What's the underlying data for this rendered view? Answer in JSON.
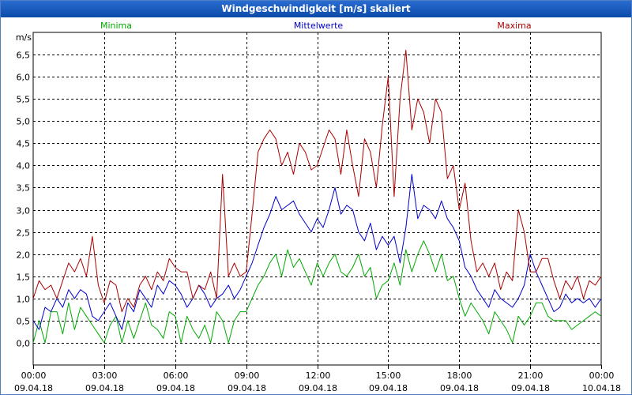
{
  "window": {
    "title": "Windgeschwindigkeit [m/s] skaliert"
  },
  "chart_data": {
    "type": "line",
    "title": "Windgeschwindigkeit [m/s] skaliert",
    "ylabel": "m/s",
    "xlabel": "",
    "ylim": [
      -0.5,
      7.0
    ],
    "xlim": [
      0,
      24
    ],
    "yticks": [
      "0,0",
      "0,5",
      "1,0",
      "1,5",
      "2,0",
      "2,5",
      "3,0",
      "3,5",
      "4,0",
      "4,5",
      "5,0",
      "5,5",
      "6,0",
      "6,5"
    ],
    "xticks": [
      {
        "time": "00:00",
        "date": "09.04.18"
      },
      {
        "time": "03:00",
        "date": "09.04.18"
      },
      {
        "time": "06:00",
        "date": "09.04.18"
      },
      {
        "time": "09:00",
        "date": "09.04.18"
      },
      {
        "time": "12:00",
        "date": "09.04.18"
      },
      {
        "time": "15:00",
        "date": "09.04.18"
      },
      {
        "time": "18:00",
        "date": "09.04.18"
      },
      {
        "time": "21:00",
        "date": "09.04.18"
      },
      {
        "time": "00:00",
        "date": "10.04.18"
      }
    ],
    "grid": true,
    "legend_position": "top",
    "series": [
      {
        "name": "Minima",
        "color": "#00aa00",
        "x": [
          0.0,
          0.25,
          0.5,
          0.75,
          1.0,
          1.25,
          1.5,
          1.75,
          2.0,
          2.25,
          2.5,
          2.75,
          3.0,
          3.25,
          3.5,
          3.75,
          4.0,
          4.25,
          4.5,
          4.75,
          5.0,
          5.25,
          5.5,
          5.75,
          6.0,
          6.25,
          6.5,
          6.75,
          7.0,
          7.25,
          7.5,
          7.75,
          8.0,
          8.25,
          8.5,
          8.75,
          9.0,
          9.25,
          9.5,
          9.75,
          10.0,
          10.25,
          10.5,
          10.75,
          11.0,
          11.25,
          11.5,
          11.75,
          12.0,
          12.25,
          12.5,
          12.75,
          13.0,
          13.25,
          13.5,
          13.75,
          14.0,
          14.25,
          14.5,
          14.75,
          15.0,
          15.25,
          15.5,
          15.75,
          16.0,
          16.25,
          16.5,
          16.75,
          17.0,
          17.25,
          17.5,
          17.75,
          18.0,
          18.25,
          18.5,
          18.75,
          19.0,
          19.25,
          19.5,
          19.75,
          20.0,
          20.25,
          20.5,
          20.75,
          21.0,
          21.25,
          21.5,
          21.75,
          22.0,
          22.25,
          22.5,
          22.75,
          23.0,
          23.25,
          23.5,
          23.75,
          24.0
        ],
        "values": [
          0.0,
          0.5,
          0.0,
          0.7,
          0.7,
          0.2,
          0.9,
          0.3,
          0.8,
          0.6,
          0.4,
          0.2,
          0.0,
          0.4,
          0.6,
          0.0,
          0.5,
          0.1,
          0.5,
          0.9,
          0.4,
          0.3,
          0.1,
          0.7,
          0.6,
          0.0,
          0.6,
          0.3,
          0.1,
          0.4,
          0.0,
          0.7,
          0.5,
          0.0,
          0.5,
          0.7,
          0.7,
          1.0,
          1.3,
          1.5,
          1.8,
          2.0,
          1.5,
          2.1,
          1.7,
          1.9,
          1.6,
          1.3,
          1.8,
          1.5,
          1.8,
          2.0,
          1.6,
          1.5,
          1.7,
          2.0,
          1.5,
          1.7,
          1.0,
          1.3,
          1.4,
          1.8,
          1.3,
          2.1,
          1.6,
          2.0,
          2.3,
          2.0,
          1.6,
          2.0,
          1.4,
          1.5,
          1.0,
          0.6,
          0.9,
          0.7,
          0.5,
          0.2,
          0.7,
          0.5,
          0.3,
          0.0,
          0.6,
          0.4,
          0.6,
          0.9,
          0.9,
          0.6,
          0.5,
          0.5,
          0.5,
          0.3,
          0.4,
          0.5,
          0.6,
          0.7,
          0.6
        ]
      },
      {
        "name": "Mittelwerte",
        "color": "#0000cc",
        "x": [
          0.0,
          0.25,
          0.5,
          0.75,
          1.0,
          1.25,
          1.5,
          1.75,
          2.0,
          2.25,
          2.5,
          2.75,
          3.0,
          3.25,
          3.5,
          3.75,
          4.0,
          4.25,
          4.5,
          4.75,
          5.0,
          5.25,
          5.5,
          5.75,
          6.0,
          6.25,
          6.5,
          6.75,
          7.0,
          7.25,
          7.5,
          7.75,
          8.0,
          8.25,
          8.5,
          8.75,
          9.0,
          9.25,
          9.5,
          9.75,
          10.0,
          10.25,
          10.5,
          10.75,
          11.0,
          11.25,
          11.5,
          11.75,
          12.0,
          12.25,
          12.5,
          12.75,
          13.0,
          13.25,
          13.5,
          13.75,
          14.0,
          14.25,
          14.5,
          14.75,
          15.0,
          15.25,
          15.5,
          15.75,
          16.0,
          16.25,
          16.5,
          16.75,
          17.0,
          17.25,
          17.5,
          17.75,
          18.0,
          18.25,
          18.5,
          18.75,
          19.0,
          19.25,
          19.5,
          19.75,
          20.0,
          20.25,
          20.5,
          20.75,
          21.0,
          21.25,
          21.5,
          21.75,
          22.0,
          22.25,
          22.5,
          22.75,
          23.0,
          23.25,
          23.5,
          23.75,
          24.0
        ],
        "values": [
          0.5,
          0.3,
          0.8,
          0.7,
          1.0,
          0.8,
          1.2,
          1.0,
          1.2,
          1.1,
          0.6,
          0.5,
          0.7,
          0.9,
          0.6,
          0.3,
          0.9,
          0.7,
          1.2,
          1.0,
          0.8,
          1.3,
          1.1,
          1.4,
          1.3,
          1.1,
          0.8,
          1.0,
          1.3,
          1.1,
          0.8,
          1.0,
          1.1,
          1.3,
          1.0,
          1.2,
          1.5,
          1.8,
          2.2,
          2.6,
          2.9,
          3.3,
          3.0,
          3.1,
          3.2,
          2.9,
          2.7,
          2.5,
          2.8,
          2.6,
          3.0,
          3.5,
          2.9,
          3.1,
          3.0,
          2.5,
          2.3,
          2.7,
          2.1,
          2.4,
          2.2,
          2.4,
          1.8,
          2.6,
          3.8,
          2.8,
          3.1,
          3.0,
          2.8,
          3.2,
          2.8,
          2.6,
          2.3,
          1.7,
          1.5,
          1.2,
          1.0,
          0.8,
          1.2,
          1.0,
          0.9,
          0.8,
          1.0,
          1.3,
          2.0,
          1.6,
          1.3,
          1.0,
          0.7,
          0.8,
          1.1,
          0.9,
          1.0,
          0.9,
          1.0,
          0.8,
          1.0
        ]
      },
      {
        "name": "Maxima",
        "color": "#aa0000",
        "x": [
          0.0,
          0.25,
          0.5,
          0.75,
          1.0,
          1.25,
          1.5,
          1.75,
          2.0,
          2.25,
          2.5,
          2.75,
          3.0,
          3.25,
          3.5,
          3.75,
          4.0,
          4.25,
          4.5,
          4.75,
          5.0,
          5.25,
          5.5,
          5.75,
          6.0,
          6.25,
          6.5,
          6.75,
          7.0,
          7.25,
          7.5,
          7.75,
          8.0,
          8.25,
          8.5,
          8.75,
          9.0,
          9.25,
          9.5,
          9.75,
          10.0,
          10.25,
          10.5,
          10.75,
          11.0,
          11.25,
          11.5,
          11.75,
          12.0,
          12.25,
          12.5,
          12.75,
          13.0,
          13.25,
          13.5,
          13.75,
          14.0,
          14.25,
          14.5,
          14.75,
          15.0,
          15.25,
          15.5,
          15.75,
          16.0,
          16.25,
          16.5,
          16.75,
          17.0,
          17.25,
          17.5,
          17.75,
          18.0,
          18.25,
          18.5,
          18.75,
          19.0,
          19.25,
          19.5,
          19.75,
          20.0,
          20.25,
          20.5,
          20.75,
          21.0,
          21.25,
          21.5,
          21.75,
          22.0,
          22.25,
          22.5,
          22.75,
          23.0,
          23.25,
          23.5,
          23.75,
          24.0
        ],
        "values": [
          1.0,
          1.4,
          1.2,
          1.3,
          1.0,
          1.4,
          1.8,
          1.6,
          1.9,
          1.5,
          2.4,
          1.3,
          0.9,
          1.4,
          1.3,
          0.7,
          1.0,
          0.8,
          1.3,
          1.5,
          1.2,
          1.6,
          1.4,
          1.9,
          1.7,
          1.6,
          1.6,
          1.0,
          1.3,
          1.2,
          1.6,
          1.0,
          3.8,
          1.5,
          1.8,
          1.5,
          1.6,
          2.9,
          4.3,
          4.6,
          4.8,
          4.6,
          4.0,
          4.3,
          3.8,
          4.5,
          4.3,
          3.9,
          4.0,
          4.4,
          4.8,
          4.6,
          3.8,
          4.8,
          4.0,
          3.3,
          4.6,
          4.3,
          3.5,
          4.9,
          6.0,
          3.3,
          5.5,
          6.6,
          4.8,
          5.5,
          5.2,
          4.5,
          5.5,
          5.2,
          3.7,
          4.0,
          3.0,
          3.6,
          2.3,
          1.6,
          1.8,
          1.5,
          1.8,
          1.2,
          1.6,
          1.4,
          3.0,
          2.5,
          1.6,
          1.6,
          1.9,
          1.9,
          1.4,
          1.0,
          1.4,
          1.2,
          1.5,
          1.0,
          1.4,
          1.3,
          1.5
        ]
      }
    ]
  }
}
